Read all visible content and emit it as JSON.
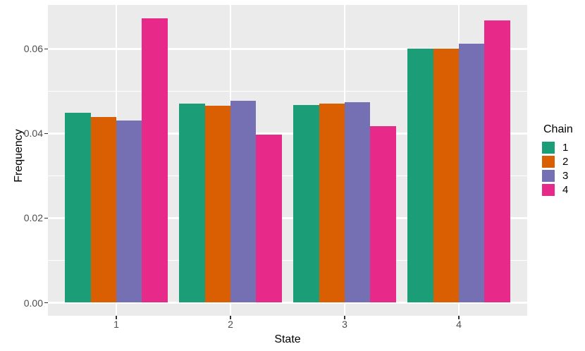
{
  "figure": {
    "background": "#FFFFFF",
    "panel_background": "#EBEBEB",
    "gridline_color": "#FFFFFF",
    "axis_text_color": "#4D4D4D",
    "title_text_color": "#000000",
    "tick_mark_color": "#333333"
  },
  "chart_data": {
    "type": "bar",
    "title": "",
    "xlabel": "State",
    "ylabel": "Frequency",
    "categories": [
      "1",
      "2",
      "3",
      "4"
    ],
    "series": [
      {
        "name": "1",
        "color": "#1B9E77",
        "values": [
          0.0449,
          0.047,
          0.0468,
          0.06
        ]
      },
      {
        "name": "2",
        "color": "#D95F02",
        "values": [
          0.0439,
          0.0466,
          0.0471,
          0.06
        ]
      },
      {
        "name": "3",
        "color": "#7570B3",
        "values": [
          0.0431,
          0.0478,
          0.0474,
          0.0613
        ]
      },
      {
        "name": "4",
        "color": "#E7298A",
        "values": [
          0.0672,
          0.0397,
          0.0417,
          0.0667
        ]
      }
    ],
    "legend": {
      "title": "Chain",
      "position": "right",
      "entries": [
        "1",
        "2",
        "3",
        "4"
      ]
    },
    "y_ticks": [
      {
        "label": "0.00",
        "value": 0.0
      },
      {
        "label": "0.02",
        "value": 0.02
      },
      {
        "label": "0.04",
        "value": 0.04
      },
      {
        "label": "0.06",
        "value": 0.06
      }
    ],
    "y_minor_values": [
      0.01,
      0.03,
      0.05
    ],
    "ylim": [
      -0.0031,
      0.0704
    ],
    "grid": true,
    "bar_grouping": "dodge"
  }
}
